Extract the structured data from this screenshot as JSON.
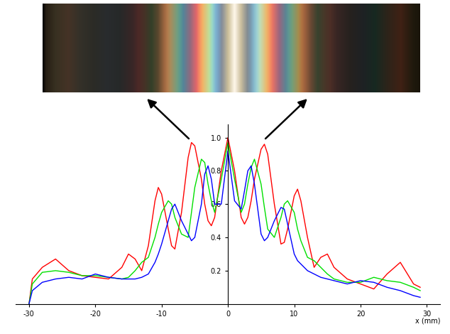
{
  "chart_data": {
    "type": "line",
    "x_label": "x (mm)",
    "x": [
      -30,
      -29.5,
      -28,
      -26,
      -24,
      -22,
      -20,
      -18,
      -16,
      -15,
      -14,
      -13,
      -12,
      -11,
      -10.5,
      -10,
      -9,
      -8.5,
      -8,
      -7,
      -6,
      -5.5,
      -5,
      -4,
      -3.5,
      -3,
      -2.5,
      -2,
      -1,
      0,
      1,
      2,
      2.5,
      3,
      3.5,
      4,
      5,
      5.5,
      6,
      7,
      8,
      8.5,
      9,
      10,
      10.5,
      11,
      12,
      13,
      14,
      15,
      16,
      18,
      20,
      22,
      24,
      26,
      28,
      29
    ],
    "series": [
      {
        "color": "#ff0000",
        "values": [
          0,
          0.15,
          0.22,
          0.27,
          0.2,
          0.17,
          0.16,
          0.15,
          0.22,
          0.3,
          0.27,
          0.2,
          0.35,
          0.62,
          0.7,
          0.66,
          0.45,
          0.35,
          0.33,
          0.55,
          0.88,
          0.97,
          0.95,
          0.75,
          0.6,
          0.5,
          0.47,
          0.52,
          0.8,
          1.0,
          0.8,
          0.52,
          0.48,
          0.52,
          0.62,
          0.75,
          0.93,
          0.96,
          0.9,
          0.6,
          0.36,
          0.37,
          0.45,
          0.65,
          0.69,
          0.62,
          0.4,
          0.22,
          0.28,
          0.3,
          0.22,
          0.15,
          0.12,
          0.09,
          0.18,
          0.25,
          0.12,
          0.1
        ]
      },
      {
        "color": "#00e000",
        "values": [
          0,
          0.12,
          0.19,
          0.2,
          0.19,
          0.17,
          0.17,
          0.16,
          0.15,
          0.16,
          0.2,
          0.25,
          0.28,
          0.4,
          0.48,
          0.55,
          0.62,
          0.6,
          0.52,
          0.42,
          0.4,
          0.55,
          0.7,
          0.87,
          0.85,
          0.72,
          0.62,
          0.55,
          0.75,
          0.97,
          0.75,
          0.55,
          0.6,
          0.72,
          0.82,
          0.87,
          0.72,
          0.58,
          0.45,
          0.4,
          0.52,
          0.6,
          0.62,
          0.55,
          0.45,
          0.38,
          0.28,
          0.26,
          0.22,
          0.18,
          0.15,
          0.13,
          0.13,
          0.16,
          0.14,
          0.13,
          0.1,
          0.08
        ]
      },
      {
        "color": "#0000ff",
        "values": [
          0,
          0.08,
          0.13,
          0.15,
          0.16,
          0.15,
          0.18,
          0.16,
          0.15,
          0.15,
          0.15,
          0.16,
          0.18,
          0.25,
          0.3,
          0.36,
          0.5,
          0.57,
          0.6,
          0.5,
          0.42,
          0.38,
          0.4,
          0.6,
          0.78,
          0.83,
          0.75,
          0.6,
          0.6,
          0.92,
          0.62,
          0.57,
          0.68,
          0.8,
          0.83,
          0.72,
          0.42,
          0.38,
          0.4,
          0.5,
          0.58,
          0.57,
          0.48,
          0.3,
          0.26,
          0.24,
          0.2,
          0.18,
          0.16,
          0.15,
          0.14,
          0.12,
          0.14,
          0.13,
          0.1,
          0.08,
          0.05,
          0.04
        ]
      }
    ],
    "xlim": [
      -32,
      32
    ],
    "ylim": [
      0,
      1.08
    ],
    "xticks": [
      -30,
      -20,
      -10,
      0,
      10,
      20,
      30
    ],
    "yticks": [
      0.2,
      0.4,
      0.6,
      0.8,
      1.0
    ],
    "grid": false
  }
}
